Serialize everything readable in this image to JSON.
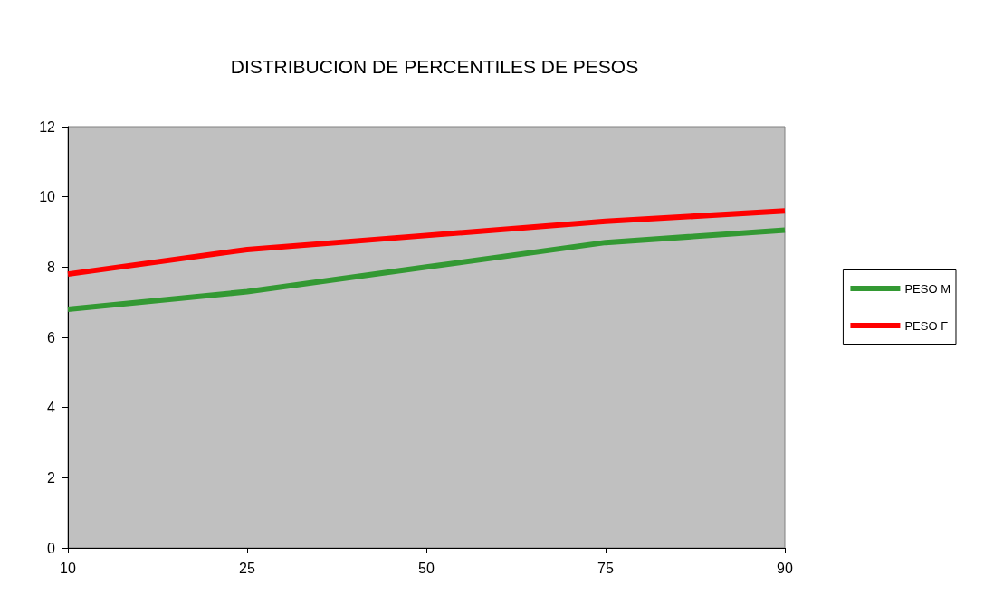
{
  "chart_data": {
    "type": "line",
    "title": "DISTRIBUCION DE PERCENTILES DE PESOS",
    "categories": [
      "10",
      "25",
      "50",
      "75",
      "90"
    ],
    "series": [
      {
        "name": "PESO M",
        "color": "#339933",
        "values": [
          6.8,
          7.3,
          8.0,
          8.7,
          9.05
        ]
      },
      {
        "name": "PESO F",
        "color": "#ff0000",
        "values": [
          7.8,
          8.5,
          8.9,
          9.3,
          9.6
        ]
      }
    ],
    "ylim": [
      0,
      12
    ],
    "yticks": [
      0,
      2,
      4,
      6,
      8,
      10,
      12
    ],
    "grid": false,
    "legend": "right",
    "marker": "none",
    "line_style": "solid"
  }
}
